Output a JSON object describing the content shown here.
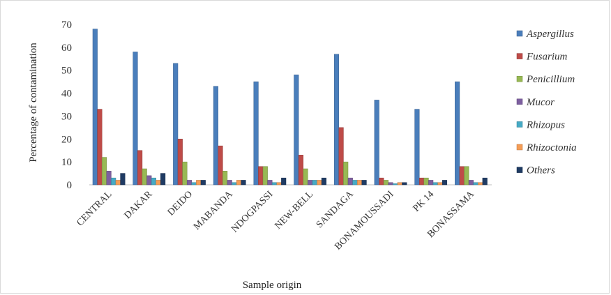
{
  "chart_data": {
    "type": "bar",
    "title": "",
    "xlabel": "Sample origin",
    "ylabel": "Percentage of contamination",
    "ylim": [
      0,
      70
    ],
    "yticks": [
      0,
      10,
      20,
      30,
      40,
      50,
      60,
      70
    ],
    "grid": false,
    "legend_position": "right",
    "categories": [
      "CENTRAL",
      "DAKAR",
      "DEIDO",
      "MABANDA",
      "NDOGPASSI",
      "NEW-BELL",
      "SANDAGA",
      "BONAMOUSSADI",
      "PK 14",
      "BONASSAMA"
    ],
    "series": [
      {
        "name": "Aspergillus",
        "color": "#4a7ebb",
        "values": [
          68,
          58,
          53,
          43,
          45,
          48,
          57,
          37,
          33,
          45
        ]
      },
      {
        "name": "Fusarium",
        "color": "#be4b48",
        "values": [
          33,
          15,
          20,
          17,
          8,
          13,
          25,
          3,
          3,
          8
        ]
      },
      {
        "name": "Penicillium",
        "color": "#98b954",
        "values": [
          12,
          7,
          10,
          6,
          8,
          7,
          10,
          2,
          3,
          8
        ]
      },
      {
        "name": "Mucor",
        "color": "#7d5fa0",
        "values": [
          6,
          4,
          2,
          2,
          2,
          2,
          3,
          1,
          2,
          2
        ]
      },
      {
        "name": "Rhizopus",
        "color": "#46aac5",
        "values": [
          3,
          3,
          1,
          1,
          1,
          2,
          2,
          0.5,
          1,
          1
        ]
      },
      {
        "name": "Rhizoctonia",
        "color": "#f59d56",
        "values": [
          2,
          2,
          2,
          2,
          1,
          2,
          2,
          1,
          1,
          1
        ]
      },
      {
        "name": "Others",
        "color": "#1f3b63",
        "values": [
          5,
          5,
          2,
          2,
          3,
          3,
          2,
          1,
          2,
          3
        ]
      }
    ]
  }
}
